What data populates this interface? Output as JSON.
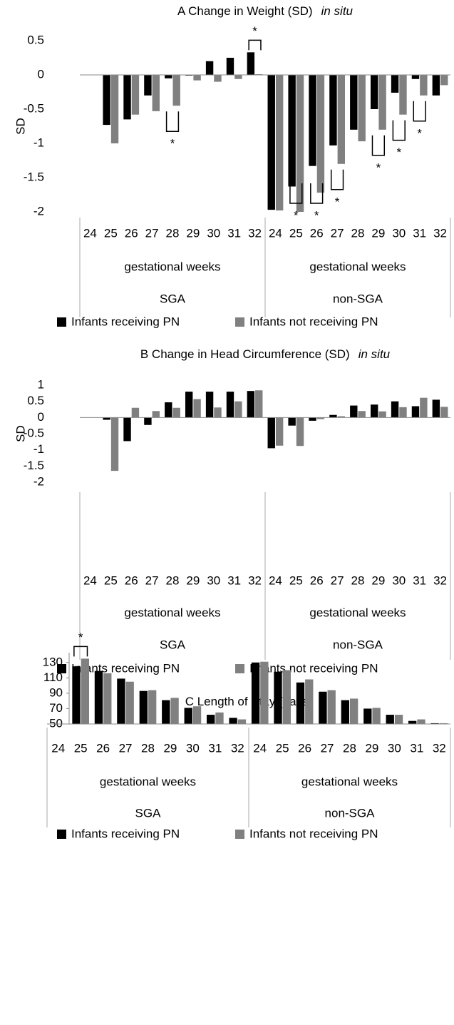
{
  "chart_data": [
    {
      "type": "bar",
      "title": "A Change in Weight (SD)",
      "title_suffix": "in situ",
      "ylabel": "SD",
      "categories": [
        "24",
        "25",
        "26",
        "27",
        "28",
        "29",
        "30",
        "31",
        "32",
        "24",
        "25",
        "26",
        "27",
        "28",
        "29",
        "30",
        "31",
        "32"
      ],
      "groups": [
        "SGA",
        "non-SGA"
      ],
      "group_xlabels": [
        "gestational weeks",
        "gestational weeks"
      ],
      "series": [
        {
          "name": "Infants receiving PN",
          "color": "#000000",
          "values": [
            null,
            -0.73,
            -0.65,
            -0.3,
            -0.05,
            -0.01,
            0.2,
            0.25,
            0.33,
            -1.97,
            -1.63,
            -1.33,
            -1.03,
            -0.8,
            -0.5,
            -0.26,
            -0.06,
            -0.3
          ]
        },
        {
          "name": "Infants not receiving PN",
          "color": "#808080",
          "values": [
            null,
            -1.0,
            -0.58,
            -0.53,
            -0.45,
            -0.08,
            -0.1,
            -0.06,
            0.01,
            -1.98,
            -2.0,
            -1.72,
            -1.3,
            -0.97,
            -0.8,
            -0.58,
            -0.3,
            -0.15
          ]
        }
      ],
      "significance": [
        null,
        null,
        null,
        null,
        "*",
        null,
        null,
        null,
        "*",
        null,
        "*",
        "*",
        "*",
        null,
        "*",
        "*",
        "*",
        null
      ],
      "ylim": [
        -2,
        0.5
      ],
      "yticks": [
        -2,
        -1.5,
        -1,
        -0.5,
        0,
        0.5
      ],
      "legend": "bottom"
    },
    {
      "type": "bar",
      "title": "B Change in Head Circumference (SD)",
      "title_suffix": "in situ",
      "ylabel": "SD",
      "categories": [
        "24",
        "25",
        "26",
        "27",
        "28",
        "29",
        "30",
        "31",
        "32",
        "24",
        "25",
        "26",
        "27",
        "28",
        "29",
        "30",
        "31",
        "32"
      ],
      "groups": [
        "SGA",
        "non-SGA"
      ],
      "group_xlabels": [
        "gestational weeks",
        "gestational weeks"
      ],
      "series": [
        {
          "name": "Infants receiving PN",
          "color": "#000000",
          "values": [
            null,
            -0.07,
            -0.73,
            -0.23,
            0.47,
            0.8,
            0.8,
            0.8,
            0.82,
            -0.95,
            -0.25,
            -0.1,
            0.08,
            0.37,
            0.4,
            0.5,
            0.35,
            0.55
          ]
        },
        {
          "name": "Infants not receiving PN",
          "color": "#808080",
          "values": [
            null,
            -1.65,
            0.3,
            0.2,
            0.3,
            0.57,
            0.31,
            0.5,
            0.84,
            -0.87,
            -0.88,
            -0.05,
            0.04,
            0.2,
            0.19,
            0.32,
            0.61,
            0.33
          ]
        }
      ],
      "ylim": [
        -2,
        1
      ],
      "yticks": [
        -2,
        -1.5,
        -1,
        -0.5,
        0,
        0.5,
        1
      ],
      "legend": "bottom"
    },
    {
      "type": "bar",
      "title": "C Length of Stay (days)",
      "categories": [
        "24",
        "25",
        "26",
        "27",
        "28",
        "29",
        "30",
        "31",
        "32",
        "24",
        "25",
        "26",
        "27",
        "28",
        "29",
        "30",
        "31",
        "32"
      ],
      "groups": [
        "SGA",
        "non-SGA"
      ],
      "group_xlabels": [
        "gestational weeks",
        "gestational weeks"
      ],
      "series": [
        {
          "name": "Infants receiving PN",
          "color": "#000000",
          "values": [
            null,
            125,
            119,
            109,
            93,
            81,
            71,
            62,
            58,
            130,
            118,
            104,
            92,
            81,
            70,
            62,
            54,
            51
          ]
        },
        {
          "name": "Infants not receiving PN",
          "color": "#808080",
          "values": [
            null,
            135,
            116,
            105,
            94,
            84,
            73,
            65,
            56,
            131,
            120,
            108,
            94,
            83,
            71,
            62,
            56,
            51
          ]
        }
      ],
      "significance": [
        null,
        "*",
        null,
        null,
        null,
        null,
        null,
        null,
        null,
        null,
        null,
        null,
        null,
        null,
        null,
        null,
        null,
        null
      ],
      "ylim": [
        50,
        140
      ],
      "yticks": [
        50,
        70,
        90,
        110,
        130
      ],
      "legend": "bottom"
    }
  ]
}
